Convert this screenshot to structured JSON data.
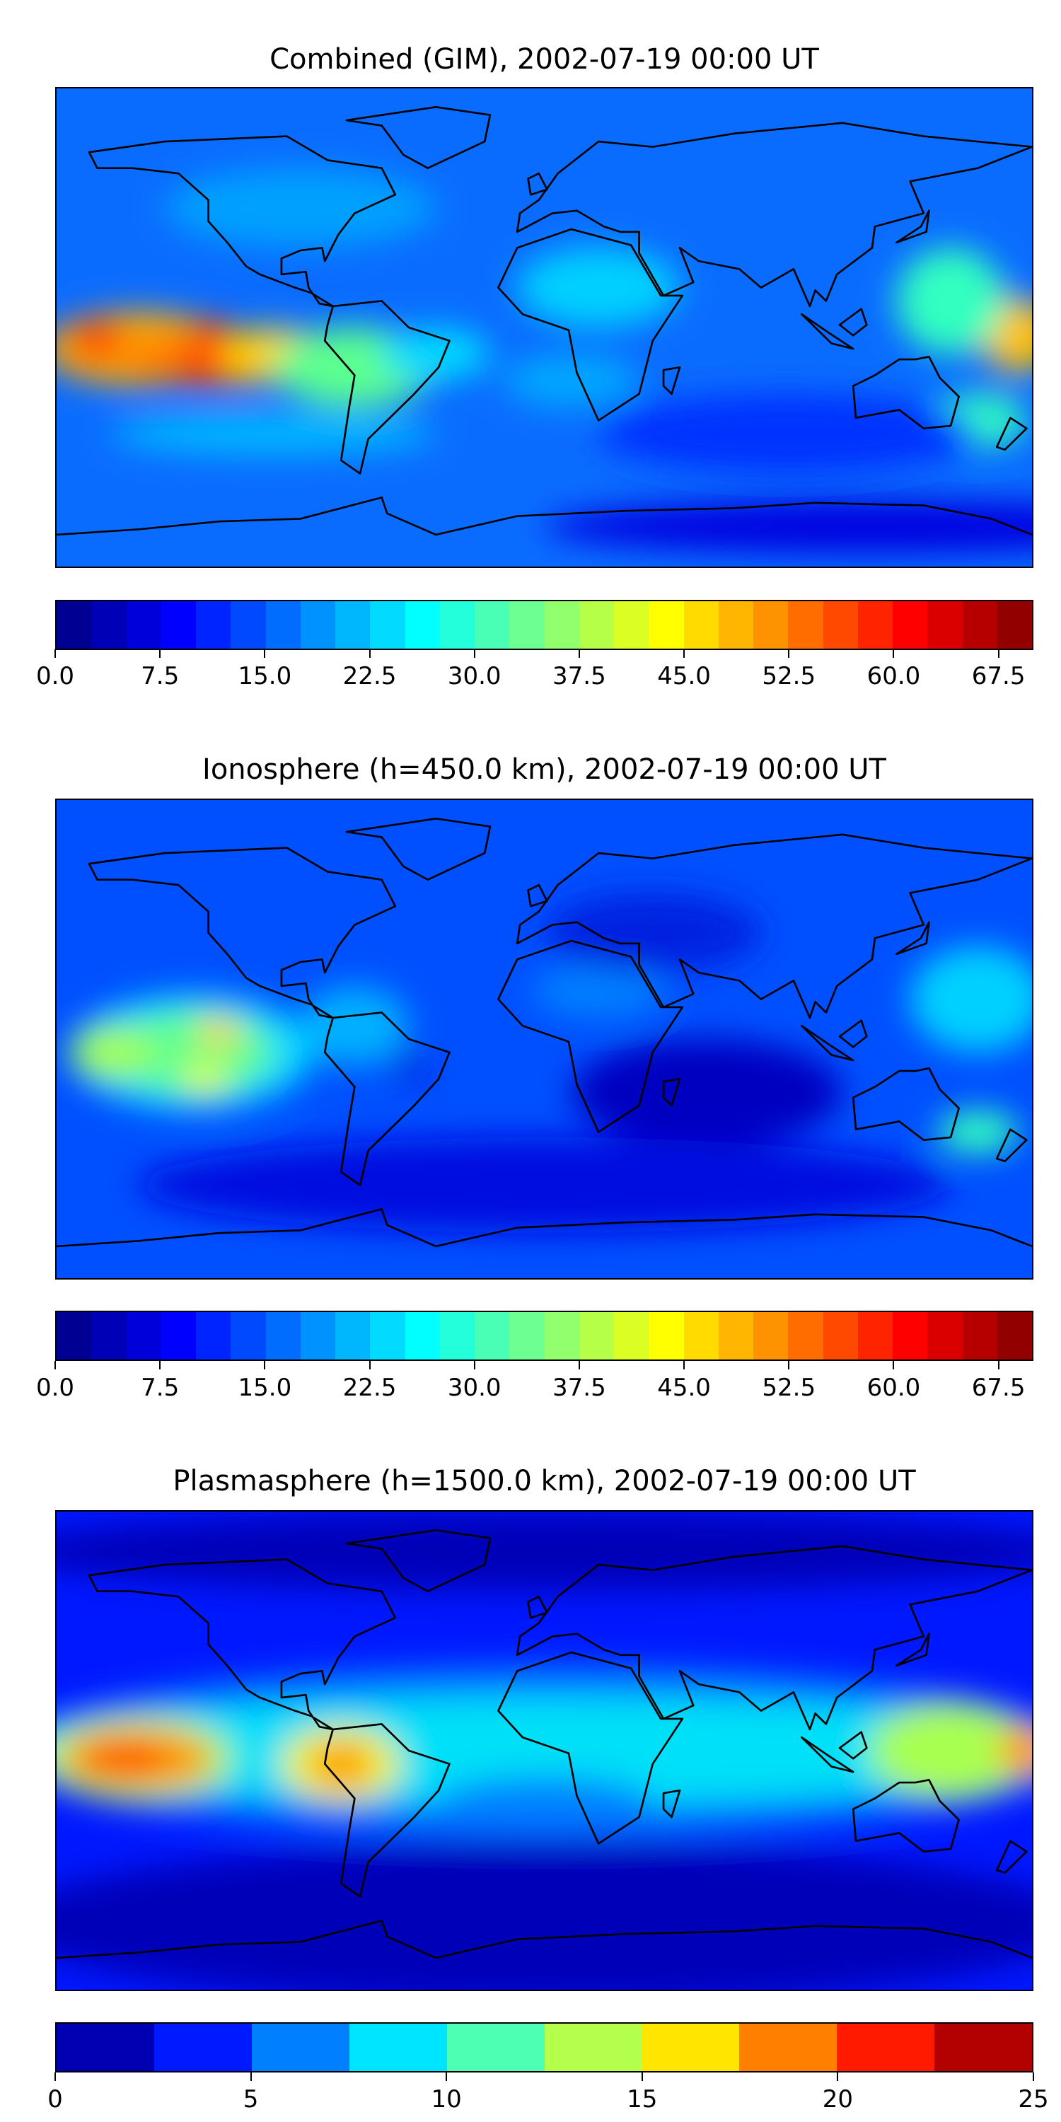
{
  "chart_data": [
    {
      "type": "heatmap",
      "title": "Combined (GIM), 2002-07-19 00:00 UT",
      "colormap": "jet",
      "colorbar": {
        "range": [
          0,
          70
        ],
        "levels": 28,
        "step": 2.5,
        "tick_labels": [
          "0.0",
          "7.5",
          "15.0",
          "22.5",
          "30.0",
          "37.5",
          "45.0",
          "52.5",
          "60.0",
          "67.5"
        ],
        "tick_values": [
          0,
          7.5,
          15,
          22.5,
          30,
          37.5,
          45,
          52.5,
          60,
          67.5
        ]
      },
      "base_color": "#0a6cff",
      "features": [
        {
          "lon": -150,
          "lat": -8,
          "rx": 35,
          "ry": 14,
          "color": "#ffa800"
        },
        {
          "lon": -120,
          "lat": -12,
          "rx": 35,
          "ry": 10,
          "color": "#ff7a00"
        },
        {
          "lon": -165,
          "lat": -5,
          "rx": 10,
          "ry": 8,
          "color": "#ff4a00"
        },
        {
          "lon": -122,
          "lat": -2,
          "rx": 8,
          "ry": 5,
          "color": "#ff3000"
        },
        {
          "lon": -125,
          "lat": -15,
          "rx": 10,
          "ry": 6,
          "color": "#ff3000"
        },
        {
          "lon": -100,
          "lat": -10,
          "rx": 20,
          "ry": 10,
          "color": "#ffd000"
        },
        {
          "lon": -70,
          "lat": -15,
          "rx": 30,
          "ry": 15,
          "color": "#5cff90"
        },
        {
          "lon": -40,
          "lat": -10,
          "rx": 20,
          "ry": 10,
          "color": "#00d8ff"
        },
        {
          "lon": 175,
          "lat": -3,
          "rx": 14,
          "ry": 14,
          "color": "#ffc000"
        },
        {
          "lon": 150,
          "lat": 10,
          "rx": 20,
          "ry": 20,
          "color": "#30ffc0"
        },
        {
          "lon": 20,
          "lat": 15,
          "rx": 30,
          "ry": 15,
          "color": "#00d0ff"
        },
        {
          "lon": 10,
          "lat": -20,
          "rx": 25,
          "ry": 10,
          "color": "#00a8ff"
        },
        {
          "lon": 160,
          "lat": -35,
          "rx": 18,
          "ry": 10,
          "color": "#30ffc0"
        },
        {
          "lon": -100,
          "lat": -40,
          "rx": 60,
          "ry": 8,
          "color": "#00b8ff"
        },
        {
          "lon": 90,
          "lat": -40,
          "rx": 70,
          "ry": 15,
          "color": "#0030ff"
        },
        {
          "lon": -90,
          "lat": 45,
          "rx": 50,
          "ry": 15,
          "color": "#00a0ff"
        },
        {
          "lon": 120,
          "lat": -75,
          "rx": 120,
          "ry": 10,
          "color": "#0000e0"
        }
      ]
    },
    {
      "type": "heatmap",
      "title": "Ionosphere  (h=450.0 km), 2002-07-19 00:00 UT",
      "colormap": "jet",
      "colorbar": {
        "range": [
          0,
          70
        ],
        "levels": 28,
        "step": 2.5,
        "tick_labels": [
          "0.0",
          "7.5",
          "15.0",
          "22.5",
          "30.0",
          "37.5",
          "45.0",
          "52.5",
          "60.0",
          "67.5"
        ],
        "tick_values": [
          0,
          7.5,
          15,
          22.5,
          30,
          37.5,
          45,
          52.5,
          60,
          67.5
        ]
      },
      "base_color": "#0050ff",
      "features": [
        {
          "lon": -130,
          "lat": -5,
          "rx": 45,
          "ry": 22,
          "color": "#00d8ff"
        },
        {
          "lon": -130,
          "lat": -5,
          "rx": 30,
          "ry": 15,
          "color": "#60ff90"
        },
        {
          "lon": -120,
          "lat": 3,
          "rx": 8,
          "ry": 5,
          "color": "#ffd000"
        },
        {
          "lon": -125,
          "lat": -15,
          "rx": 8,
          "ry": 6,
          "color": "#e0ff20"
        },
        {
          "lon": -160,
          "lat": -5,
          "rx": 15,
          "ry": 10,
          "color": "#a0ff50"
        },
        {
          "lon": -70,
          "lat": 5,
          "rx": 20,
          "ry": 15,
          "color": "#00b0ff"
        },
        {
          "lon": -50,
          "lat": -10,
          "rx": 6,
          "ry": 5,
          "color": "#0010d0"
        },
        {
          "lon": 160,
          "lat": 15,
          "rx": 25,
          "ry": 20,
          "color": "#00d0ff"
        },
        {
          "lon": 160,
          "lat": -35,
          "rx": 15,
          "ry": 8,
          "color": "#30ffc0"
        },
        {
          "lon": 20,
          "lat": 18,
          "rx": 25,
          "ry": 10,
          "color": "#0080ff"
        },
        {
          "lon": 60,
          "lat": -20,
          "rx": 50,
          "ry": 20,
          "color": "#0000c0"
        },
        {
          "lon": 0,
          "lat": -55,
          "rx": 150,
          "ry": 18,
          "color": "#0010e0"
        },
        {
          "lon": 40,
          "lat": 40,
          "rx": 40,
          "ry": 15,
          "color": "#0020e0"
        }
      ]
    },
    {
      "type": "heatmap",
      "title": "Plasmasphere (h=1500.0 km), 2002-07-19 00:00 UT",
      "colormap": "jet",
      "colorbar": {
        "range": [
          0,
          25
        ],
        "levels": 10,
        "step": 2.5,
        "tick_labels": [
          "0",
          "5",
          "10",
          "15",
          "20",
          "25"
        ],
        "tick_values": [
          0,
          5,
          10,
          15,
          20,
          25
        ]
      },
      "base_color": "#0018ff",
      "features": [
        {
          "lon": 0,
          "lat": 0,
          "rx": 200,
          "ry": 32,
          "color": "#0080ff"
        },
        {
          "lon": 0,
          "lat": 0,
          "rx": 200,
          "ry": 20,
          "color": "#00e0f8"
        },
        {
          "lon": -150,
          "lat": -3,
          "rx": 35,
          "ry": 16,
          "color": "#a8ff50"
        },
        {
          "lon": -150,
          "lat": -3,
          "rx": 28,
          "ry": 11,
          "color": "#ff9800"
        },
        {
          "lon": -155,
          "lat": -3,
          "rx": 16,
          "ry": 5,
          "color": "#ff3800"
        },
        {
          "lon": -75,
          "lat": -5,
          "rx": 22,
          "ry": 14,
          "color": "#f0f800"
        },
        {
          "lon": -75,
          "lat": -5,
          "rx": 12,
          "ry": 8,
          "color": "#ff9800"
        },
        {
          "lon": 150,
          "lat": 0,
          "rx": 30,
          "ry": 18,
          "color": "#a8ff50"
        },
        {
          "lon": 178,
          "lat": 0,
          "rx": 10,
          "ry": 10,
          "color": "#ff9800"
        },
        {
          "lon": 0,
          "lat": -20,
          "rx": 40,
          "ry": 10,
          "color": "#0080ff"
        },
        {
          "lon": 0,
          "lat": -65,
          "rx": 200,
          "ry": 30,
          "color": "#0000b8"
        },
        {
          "lon": 0,
          "lat": 75,
          "rx": 200,
          "ry": 15,
          "color": "#0000b8"
        }
      ]
    }
  ]
}
